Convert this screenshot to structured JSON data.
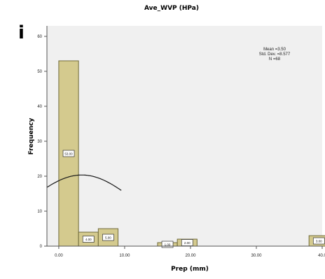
{
  "panel_letter": "i",
  "chart_data": {
    "type": "bar",
    "title": "Ave_WVP (HPa)",
    "xlabel": "Prep (mm)",
    "ylabel": "Frequency",
    "xlim": [
      -1.8,
      40
    ],
    "ylim": [
      0,
      63
    ],
    "x_ticks": [
      0,
      10,
      20,
      30,
      40
    ],
    "x_tick_labels": [
      "0.00",
      "10.00",
      "20.00",
      "30.00",
      "40.0"
    ],
    "y_ticks": [
      0,
      10,
      20,
      30,
      40,
      50,
      60
    ],
    "y_tick_labels": [
      "0",
      "10",
      "20",
      "30",
      "40",
      "50",
      "60"
    ],
    "bin_width": 3.0,
    "bins": [
      {
        "start": 0.0,
        "value": 53,
        "label": "53.00"
      },
      {
        "start": 3.0,
        "value": 4,
        "label": "4.00"
      },
      {
        "start": 6.0,
        "value": 5,
        "label": "5.00"
      },
      {
        "start": 15.0,
        "value": 1,
        "label": "1.00"
      },
      {
        "start": 18.0,
        "value": 2,
        "label": "2.00"
      },
      {
        "start": 38.0,
        "value": 3,
        "label": "3.00"
      }
    ],
    "normal_curve": {
      "mean": 3.5,
      "std": 8.577,
      "n": 68
    },
    "stats": {
      "mean": "Mean =3.50",
      "std_dev": "Std. Dev. =8.577",
      "n": "N =68"
    },
    "colors": {
      "bar_fill": "#d4ca8e",
      "bar_stroke": "#6f6a3a",
      "plot_bg": "#f0f0f0",
      "curve": "#1a1a1a"
    }
  }
}
